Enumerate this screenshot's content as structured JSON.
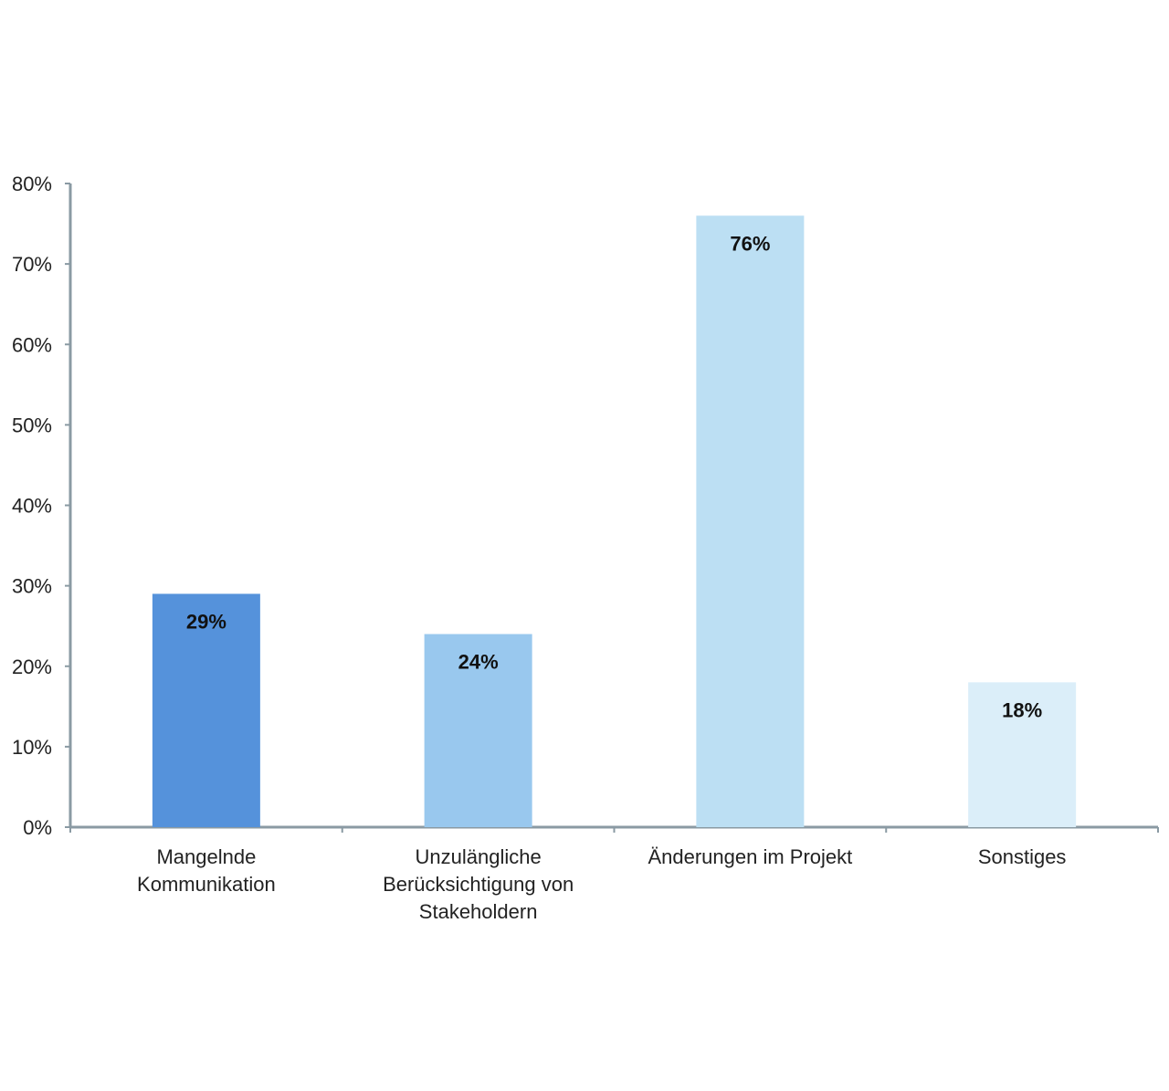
{
  "chart_data": {
    "type": "bar",
    "categories": [
      [
        "Mangelnde",
        "Kommunikation"
      ],
      [
        "Unzulängliche",
        "Berücksichtigung von",
        "Stakeholdern"
      ],
      [
        "Änderungen im Projekt"
      ],
      [
        "Sonstiges"
      ]
    ],
    "values": [
      29,
      24,
      76,
      18
    ],
    "value_labels": [
      "29%",
      "24%",
      "76%",
      "18%"
    ],
    "bar_colors": [
      "#5592db",
      "#99c8ee",
      "#bcdff3",
      "#dbeef9"
    ],
    "y_ticks": [
      0,
      10,
      20,
      30,
      40,
      50,
      60,
      70,
      80
    ],
    "y_tick_labels": [
      "0%",
      "10%",
      "20%",
      "30%",
      "40%",
      "50%",
      "60%",
      "70%",
      "80%"
    ],
    "ylim": [
      0,
      80
    ],
    "axis_color": "#8a9aa3",
    "grid": false,
    "title": "",
    "xlabel": "",
    "ylabel": ""
  }
}
